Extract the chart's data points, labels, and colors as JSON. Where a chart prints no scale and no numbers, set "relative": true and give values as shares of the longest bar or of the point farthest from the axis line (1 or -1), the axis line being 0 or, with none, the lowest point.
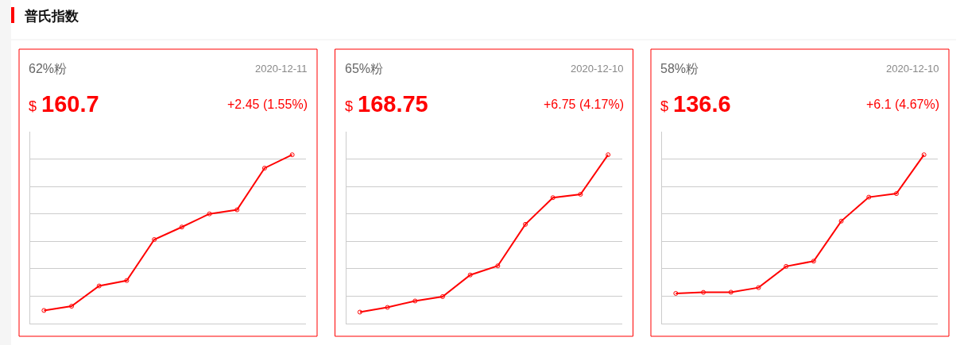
{
  "chart_data": [
    {
      "type": "line",
      "relative": true,
      "title": "62%粉",
      "subtitle": "2020-12-11",
      "annotations": [
        "$",
        "160.7",
        "+2.45 (1.55%)",
        "普氏指数"
      ],
      "categories": [
        null,
        null,
        null,
        null,
        null,
        null,
        null,
        null,
        null,
        null
      ],
      "grid": "y",
      "marker": "circle",
      "line_style": "solid",
      "series": [
        {
          "color": "#ff0000",
          "values": [
            0.078,
            0.103,
            0.223,
            0.255,
            0.498,
            0.572,
            0.65,
            0.674,
            0.921,
            1
          ]
        }
      ]
    },
    {
      "type": "line",
      "relative": true,
      "title": "65%粉",
      "subtitle": "2020-12-10",
      "annotations": [
        "$",
        "168.75",
        "+6.75 (4.17%)"
      ],
      "categories": [
        null,
        null,
        null,
        null,
        null,
        null,
        null,
        null,
        null,
        null
      ],
      "grid": "y",
      "marker": "circle",
      "line_style": "solid",
      "series": [
        {
          "color": "#ff0000",
          "values": [
            0.068,
            0.096,
            0.134,
            0.16,
            0.288,
            0.342,
            0.588,
            0.746,
            0.766,
            1
          ]
        }
      ]
    },
    {
      "type": "line",
      "relative": true,
      "title": "58%粉",
      "subtitle": "2020-12-10",
      "annotations": [
        "$",
        "136.6",
        "+6.1 (4.67%)"
      ],
      "categories": [
        null,
        null,
        null,
        null,
        null,
        null,
        null,
        null,
        null,
        null
      ],
      "grid": "y",
      "marker": "circle",
      "line_style": "solid",
      "series": [
        {
          "color": "#ff0000",
          "values": [
            0.179,
            0.185,
            0.186,
            0.213,
            0.339,
            0.37,
            0.607,
            0.749,
            0.77,
            1
          ]
        }
      ]
    }
  ]
}
